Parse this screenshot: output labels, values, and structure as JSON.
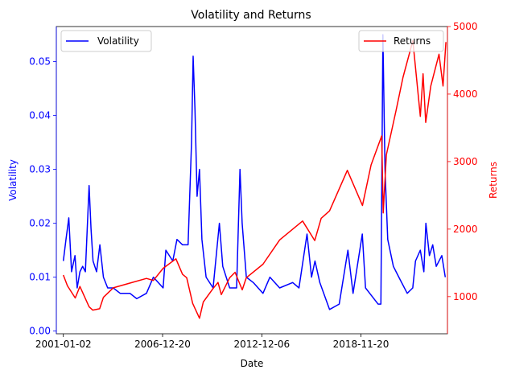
{
  "chart_data": {
    "type": "line",
    "title": "Volatility and Returns",
    "xlabel": "Date",
    "ylabel_left": "Volatility",
    "ylabel_right": "Returns",
    "xlim": [
      "2000-08-01",
      "2024-02-01"
    ],
    "x_ticks": [
      "2001-01-02",
      "2006-12-20",
      "2012-12-06",
      "2018-11-20"
    ],
    "ylim_left": [
      -0.0005,
      0.0565
    ],
    "ylim_right": [
      450,
      5000
    ],
    "y_ticks_left": [
      "0.00",
      "0.01",
      "0.02",
      "0.03",
      "0.04",
      "0.05"
    ],
    "y_ticks_right": [
      "1000",
      "2000",
      "3000",
      "4000",
      "5000"
    ],
    "grid": false,
    "legend_left": {
      "placement": "upper-left",
      "label": "Volatility"
    },
    "legend_right": {
      "placement": "upper-right",
      "label": "Returns"
    },
    "colors": {
      "volatility": "#0000ff",
      "returns": "#ff0000",
      "left_axis": "#0000ff",
      "right_axis": "#ff0000"
    },
    "series": [
      {
        "name": "Volatility",
        "axis": "left",
        "x": [
          "2001-01-02",
          "2001-03-01",
          "2001-05-01",
          "2001-07-01",
          "2001-09-15",
          "2001-11-01",
          "2002-01-01",
          "2002-03-01",
          "2002-05-01",
          "2002-07-20",
          "2002-09-01",
          "2002-10-15",
          "2003-01-01",
          "2003-03-15",
          "2003-06-01",
          "2003-09-01",
          "2004-01-01",
          "2004-06-01",
          "2005-01-01",
          "2005-06-01",
          "2006-01-01",
          "2006-06-01",
          "2007-01-01",
          "2007-03-01",
          "2007-08-01",
          "2007-11-01",
          "2008-03-01",
          "2008-07-01",
          "2008-09-15",
          "2008-10-20",
          "2008-12-01",
          "2009-01-15",
          "2009-03-10",
          "2009-05-01",
          "2009-08-01",
          "2010-01-01",
          "2010-05-20",
          "2010-08-01",
          "2011-01-01",
          "2011-06-01",
          "2011-08-15",
          "2011-10-01",
          "2012-01-01",
          "2012-06-01",
          "2013-01-01",
          "2013-06-01",
          "2014-01-01",
          "2014-10-15",
          "2015-03-01",
          "2015-08-25",
          "2015-12-01",
          "2016-02-15",
          "2016-06-01",
          "2017-01-01",
          "2017-08-01",
          "2018-02-08",
          "2018-06-01",
          "2018-12-20",
          "2019-03-01",
          "2019-06-01",
          "2019-12-01",
          "2020-02-01",
          "2020-03-16",
          "2020-05-01",
          "2020-07-01",
          "2020-11-01",
          "2021-03-01",
          "2021-09-01",
          "2022-01-01",
          "2022-03-01",
          "2022-06-15",
          "2022-09-01",
          "2022-10-15",
          "2023-01-01",
          "2023-03-15",
          "2023-06-01",
          "2023-10-01",
          "2023-12-15"
        ],
        "values": [
          0.013,
          0.017,
          0.021,
          0.011,
          0.014,
          0.008,
          0.011,
          0.012,
          0.011,
          0.027,
          0.019,
          0.013,
          0.011,
          0.016,
          0.01,
          0.008,
          0.008,
          0.007,
          0.007,
          0.006,
          0.007,
          0.01,
          0.008,
          0.015,
          0.013,
          0.017,
          0.016,
          0.016,
          0.035,
          0.051,
          0.041,
          0.025,
          0.03,
          0.017,
          0.01,
          0.008,
          0.02,
          0.012,
          0.008,
          0.008,
          0.03,
          0.02,
          0.01,
          0.009,
          0.007,
          0.01,
          0.008,
          0.009,
          0.008,
          0.018,
          0.01,
          0.013,
          0.009,
          0.004,
          0.005,
          0.015,
          0.007,
          0.018,
          0.008,
          0.007,
          0.005,
          0.005,
          0.055,
          0.03,
          0.017,
          0.012,
          0.01,
          0.007,
          0.008,
          0.013,
          0.015,
          0.011,
          0.02,
          0.014,
          0.016,
          0.012,
          0.014,
          0.01
        ]
      },
      {
        "name": "Returns",
        "axis": "right",
        "x": [
          "2001-01-02",
          "2001-04-01",
          "2001-09-20",
          "2002-01-01",
          "2002-07-20",
          "2002-10-09",
          "2003-03-10",
          "2003-06-01",
          "2004-01-01",
          "2005-01-01",
          "2006-01-01",
          "2006-06-01",
          "2007-01-01",
          "2007-10-09",
          "2008-03-01",
          "2008-06-01",
          "2008-10-10",
          "2009-03-09",
          "2009-06-01",
          "2010-01-01",
          "2010-04-20",
          "2010-07-01",
          "2011-01-01",
          "2011-04-29",
          "2011-10-03",
          "2012-01-01",
          "2013-01-01",
          "2014-01-01",
          "2015-05-20",
          "2016-02-11",
          "2016-07-01",
          "2017-01-01",
          "2018-01-26",
          "2018-12-24",
          "2019-07-01",
          "2020-02-19",
          "2020-03-23",
          "2020-06-01",
          "2021-01-01",
          "2021-06-01",
          "2022-01-03",
          "2022-06-16",
          "2022-08-15",
          "2022-10-12",
          "2023-02-01",
          "2023-07-31",
          "2023-10-27",
          "2023-12-29"
        ],
        "values": [
          1320,
          1160,
          980,
          1150,
          850,
          800,
          820,
          990,
          1130,
          1200,
          1270,
          1240,
          1420,
          1560,
          1330,
          1280,
          900,
          680,
          920,
          1120,
          1210,
          1030,
          1280,
          1360,
          1100,
          1280,
          1480,
          1840,
          2120,
          1830,
          2160,
          2270,
          2870,
          2350,
          2950,
          3380,
          2240,
          3100,
          3760,
          4250,
          4790,
          3670,
          4300,
          3580,
          4120,
          4590,
          4120,
          4770
        ]
      }
    ]
  }
}
